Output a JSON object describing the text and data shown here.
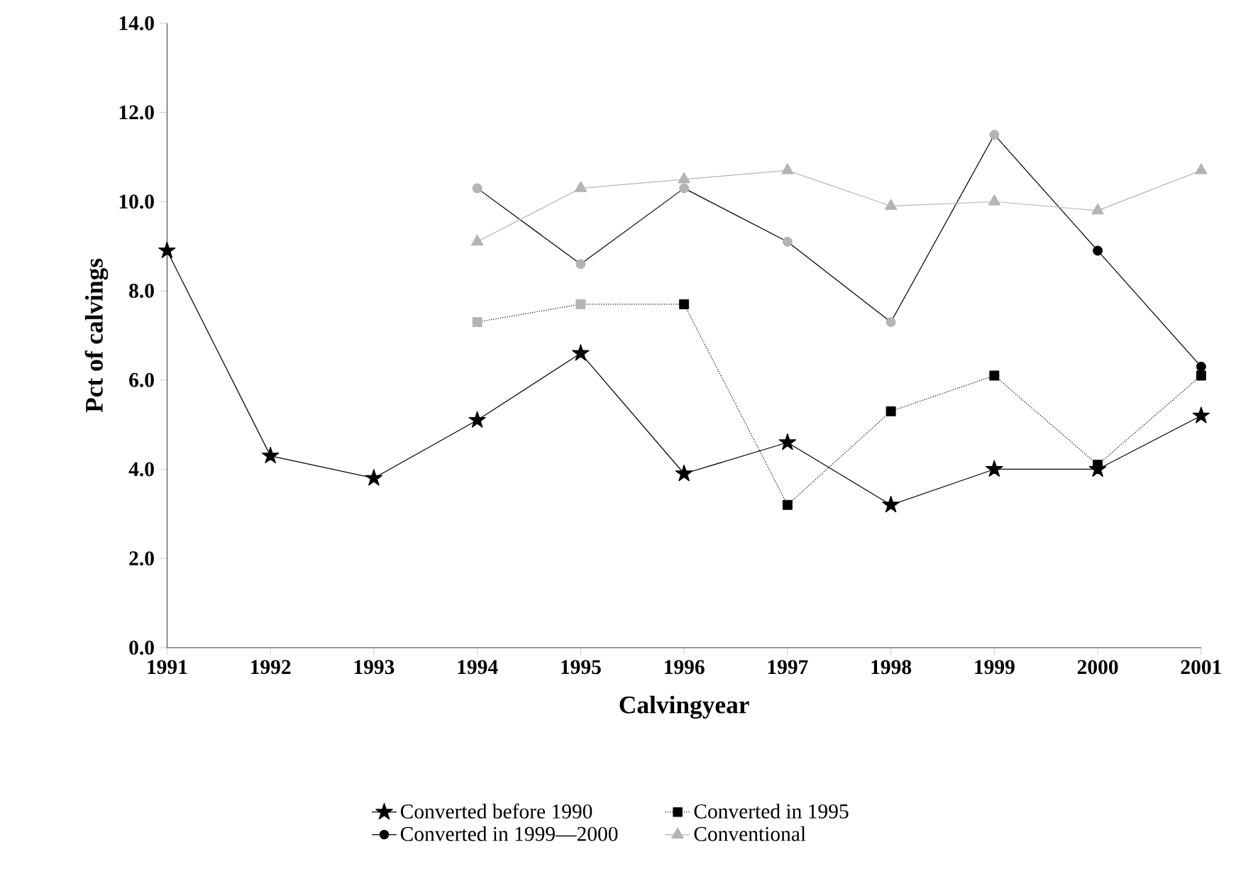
{
  "chart_data": {
    "type": "line",
    "xlabel": "Calvingyear",
    "ylabel": "Pct of calvings",
    "x": [
      1991,
      1992,
      1993,
      1994,
      1995,
      1996,
      1997,
      1998,
      1999,
      2000,
      2001
    ],
    "xlim": [
      1991,
      2001
    ],
    "xticks": [
      1991,
      1992,
      1993,
      1994,
      1995,
      1996,
      1997,
      1998,
      1999,
      2000,
      2001
    ],
    "ylim": [
      0,
      14
    ],
    "yticks": [
      {
        "value": 0,
        "label": "0.0"
      },
      {
        "value": 2,
        "label": "2.0"
      },
      {
        "value": 4,
        "label": "4.0"
      },
      {
        "value": 6,
        "label": "6.0"
      },
      {
        "value": 8,
        "label": "8.0"
      },
      {
        "value": 10,
        "label": "10.0"
      },
      {
        "value": 12,
        "label": "12.0"
      },
      {
        "value": 14,
        "label": "14.0"
      }
    ],
    "grid": false,
    "legend": "bottom",
    "series": [
      {
        "name": "Converted before 1990",
        "color": "#000000",
        "marker": "star",
        "line_style": "solid",
        "values": [
          8.9,
          4.3,
          3.8,
          5.1,
          6.6,
          3.9,
          4.6,
          3.2,
          4.0,
          4.0,
          5.2
        ]
      },
      {
        "name": "Converted in 1995",
        "color": "#000000",
        "marker": "square",
        "line_style": "dotted",
        "values": [
          null,
          null,
          null,
          7.3,
          7.7,
          7.7,
          3.2,
          5.3,
          6.1,
          4.1,
          6.1
        ],
        "colors": [
          null,
          null,
          null,
          "#b4b4b4",
          "#b4b4b4",
          "#000000",
          "#000000",
          "#000000",
          "#000000",
          "#000000",
          "#000000"
        ]
      },
      {
        "name": "Converted in 1999—2000",
        "color": "#000000",
        "marker": "circle",
        "line_style": "solid",
        "values": [
          null,
          null,
          null,
          10.3,
          8.6,
          10.3,
          9.1,
          7.3,
          11.5,
          8.9,
          6.3
        ],
        "colors": [
          null,
          null,
          null,
          "#b4b4b4",
          "#b4b4b4",
          "#b4b4b4",
          "#b4b4b4",
          "#b4b4b4",
          "#b4b4b4",
          "#000000",
          "#000000"
        ]
      },
      {
        "name": "Conventional",
        "color": "#b4b4b4",
        "marker": "triangle",
        "line_style": "solid",
        "values": [
          null,
          null,
          null,
          9.1,
          10.3,
          10.5,
          10.7,
          9.9,
          10.0,
          9.8,
          10.7
        ]
      }
    ]
  }
}
